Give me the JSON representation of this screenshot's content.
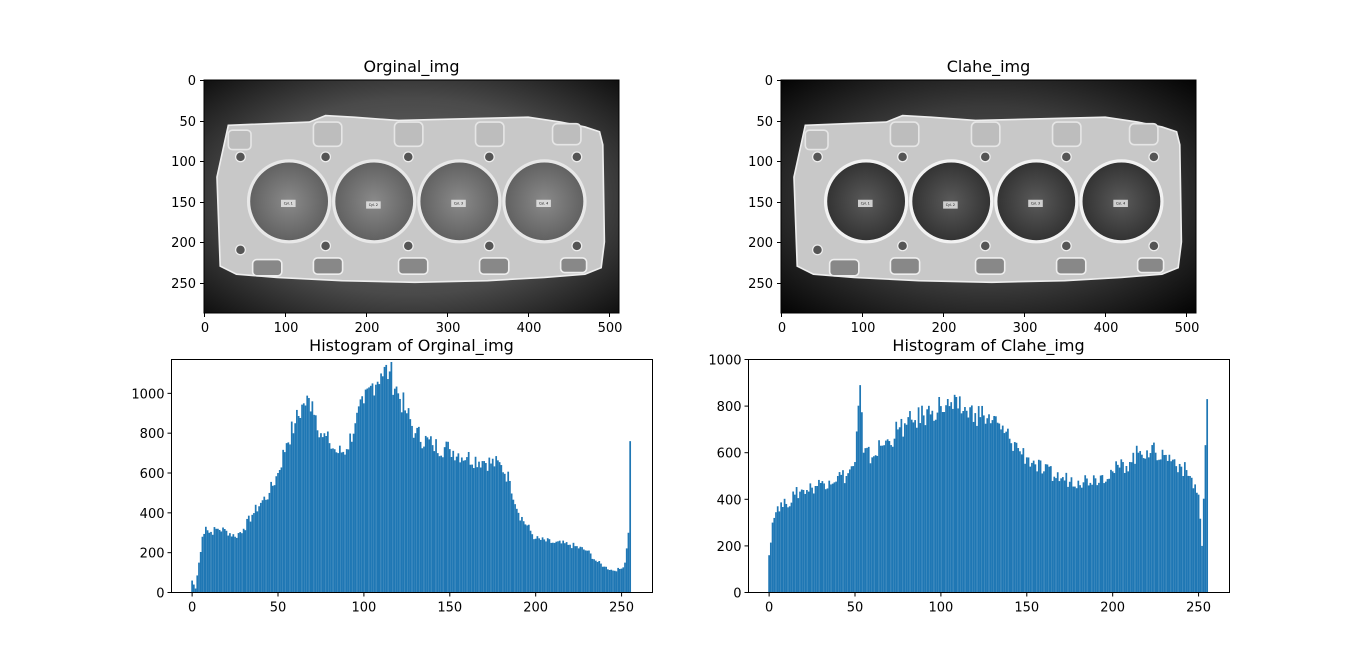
{
  "figure": {
    "background": "#ffffff",
    "bar_color": "#1f77b4",
    "axis_color": "#000000"
  },
  "image_panels": [
    {
      "title": "Orginal_img",
      "xticks": [
        "0",
        "100",
        "200",
        "300",
        "400",
        "500"
      ],
      "yticks": [
        "0",
        "50",
        "100",
        "150",
        "200",
        "250"
      ],
      "xlim": [
        0,
        512
      ],
      "ylim": [
        288,
        0
      ],
      "image_content": "grayscale photo of engine head gasket (4 cylinder bores) on dark surface",
      "tag_labels": [
        "Cyl. 1",
        "Cyl. 2",
        "Cyl. 3",
        "Cyl. 4"
      ]
    },
    {
      "title": "Clahe_img",
      "xticks": [
        "0",
        "100",
        "200",
        "300",
        "400",
        "500"
      ],
      "yticks": [
        "0",
        "50",
        "100",
        "150",
        "200",
        "250"
      ],
      "xlim": [
        0,
        512
      ],
      "ylim": [
        288,
        0
      ],
      "image_content": "CLAHE contrast-enhanced grayscale photo of engine head gasket",
      "tag_labels": [
        "Cyl. 1",
        "Cyl. 2",
        "Cyl. 3",
        "Cyl. 4"
      ]
    }
  ],
  "chart_data": [
    {
      "type": "bar",
      "title": "Histogram of Orginal_img",
      "xlabel": "",
      "ylabel": "",
      "xlim": [
        -12,
        268
      ],
      "ylim": [
        0,
        1170
      ],
      "xticks": [
        "0",
        "50",
        "100",
        "150",
        "200",
        "250"
      ],
      "yticks": [
        "0",
        "200",
        "400",
        "600",
        "800",
        "1000"
      ],
      "bins": 256,
      "x": [
        0,
        2,
        4,
        6,
        8,
        10,
        15,
        20,
        25,
        30,
        35,
        40,
        45,
        50,
        55,
        60,
        65,
        70,
        75,
        80,
        85,
        90,
        95,
        100,
        105,
        110,
        115,
        120,
        125,
        130,
        140,
        150,
        160,
        170,
        180,
        185,
        190,
        200,
        210,
        220,
        230,
        235,
        240,
        245,
        250,
        252,
        254,
        255
      ],
      "values": [
        60,
        20,
        150,
        280,
        330,
        300,
        320,
        310,
        280,
        320,
        390,
        450,
        500,
        600,
        750,
        850,
        950,
        960,
        800,
        750,
        700,
        720,
        850,
        950,
        1050,
        1100,
        1110,
        1000,
        900,
        800,
        740,
        720,
        680,
        660,
        640,
        560,
        400,
        270,
        250,
        240,
        210,
        160,
        130,
        110,
        120,
        150,
        300,
        760
      ]
    },
    {
      "type": "bar",
      "title": "Histogram of Clahe_img",
      "xlabel": "",
      "ylabel": "",
      "xlim": [
        -12,
        268
      ],
      "ylim": [
        0,
        1000
      ],
      "xticks": [
        "0",
        "50",
        "100",
        "150",
        "200",
        "250"
      ],
      "yticks": [
        "0",
        "200",
        "400",
        "600",
        "800",
        "1000"
      ],
      "bins": 256,
      "x": [
        0,
        2,
        5,
        10,
        15,
        20,
        25,
        30,
        35,
        40,
        45,
        50,
        53,
        55,
        60,
        65,
        70,
        75,
        80,
        85,
        90,
        95,
        100,
        105,
        110,
        115,
        120,
        125,
        130,
        135,
        140,
        145,
        150,
        155,
        160,
        170,
        180,
        190,
        200,
        210,
        215,
        220,
        225,
        230,
        235,
        240,
        245,
        250,
        252,
        255
      ],
      "values": [
        160,
        300,
        370,
        380,
        420,
        440,
        450,
        470,
        480,
        500,
        500,
        560,
        890,
        600,
        580,
        630,
        650,
        700,
        720,
        740,
        760,
        780,
        800,
        800,
        790,
        780,
        770,
        760,
        740,
        700,
        660,
        620,
        580,
        550,
        520,
        490,
        480,
        490,
        520,
        560,
        600,
        610,
        600,
        590,
        570,
        540,
        500,
        420,
        200,
        830
      ]
    }
  ]
}
